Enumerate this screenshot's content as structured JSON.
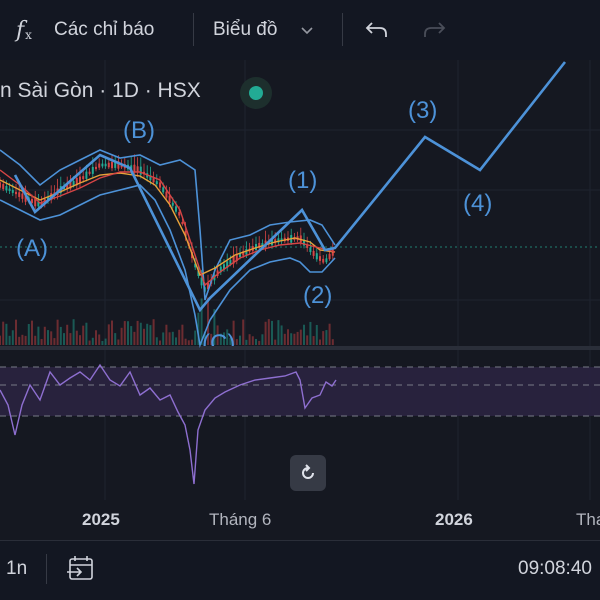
{
  "toolbar": {
    "fx_icon": "function-icon",
    "indicators_label": "Các chỉ báo",
    "chart_type_label": "Biểu đồ",
    "chevron_icon": "chevron-down-icon",
    "undo_icon": "undo-icon",
    "redo_icon": "redo-icon"
  },
  "symbol": {
    "title": "n Sài Gòn · 1D · HSX",
    "status_icon": "live-status-dot",
    "status_color": "#22ab94"
  },
  "wave_labels": {
    "a": "(A)",
    "b": "(B)",
    "c": "(C)",
    "w1": "(1)",
    "w2": "(2)",
    "w3": "(3)",
    "w4": "(4)"
  },
  "colors": {
    "background": "#151821",
    "wave_line": "#4d92d8",
    "bollinger": "#4d92d8",
    "ma_fast": "#e8a23a",
    "ma_slow": "#d64545",
    "rsi_line": "#8e6fd0",
    "rsi_band": "#2a2440",
    "candle_up": "#22ab94",
    "candle_down": "#d64545"
  },
  "reset_button": {
    "icon": "reset-icon"
  },
  "time_axis": {
    "ticks": [
      {
        "label": "2025",
        "bold": true
      },
      {
        "label": "Tháng 6",
        "bold": false
      },
      {
        "label": "2026",
        "bold": true
      },
      {
        "label": "Tha",
        "bold": false
      }
    ]
  },
  "bottom_bar": {
    "timeframe": "1n",
    "goto_icon": "go-to-date-icon",
    "clock": "09:08:40"
  }
}
